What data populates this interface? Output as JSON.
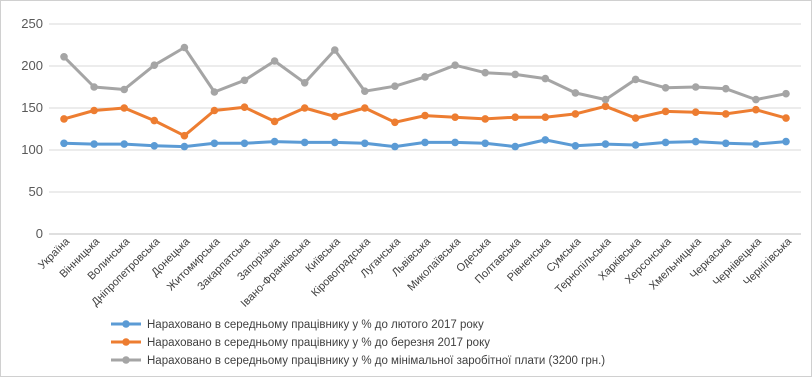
{
  "chart_data": {
    "type": "line",
    "title": "",
    "xlabel": "",
    "ylabel": "",
    "ylim": [
      0,
      250
    ],
    "yticks": [
      0,
      50,
      100,
      150,
      200,
      250
    ],
    "grid": true,
    "legend_position": "bottom",
    "categories": [
      "Україна",
      "Вінницька",
      "Волинська",
      "Дніпропетровська",
      "Донецька",
      "Житомирська",
      "Закарпатська",
      "Запорізька",
      "Івано-Франківська",
      "Київська",
      "Кіровоградська",
      "Луганська",
      "Львівська",
      "Миколаївська",
      "Одеська",
      "Полтавська",
      "Рівненська",
      "Сумська",
      "Тернопільська",
      "Харківська",
      "Херсонська",
      "Хмельницька",
      "Черкаська",
      "Чернівецька",
      "Чернігівська"
    ],
    "series": [
      {
        "name": "Нараховано в середньому працівнику у % до лютого 2017 року",
        "color": "#5b9bd5",
        "values": [
          108,
          107,
          107,
          105,
          104,
          108,
          108,
          110,
          109,
          109,
          108,
          104,
          109,
          109,
          108,
          104,
          112,
          105,
          107,
          106,
          109,
          110,
          108,
          107,
          110
        ]
      },
      {
        "name": "Нараховано в середньому працівнику у % до березня 2017 року",
        "color": "#ed7d31",
        "values": [
          137,
          147,
          150,
          135,
          117,
          147,
          151,
          134,
          150,
          140,
          150,
          133,
          141,
          139,
          137,
          139,
          139,
          143,
          152,
          138,
          146,
          145,
          143,
          148,
          138
        ]
      },
      {
        "name": "Нараховано в середньому працівнику у % до мінімальної заробітної плати (3200 грн.)",
        "color": "#a5a5a5",
        "values": [
          211,
          175,
          172,
          201,
          222,
          169,
          183,
          206,
          180,
          219,
          170,
          176,
          187,
          201,
          192,
          190,
          185,
          168,
          160,
          184,
          174,
          175,
          173,
          160,
          167
        ]
      }
    ]
  }
}
